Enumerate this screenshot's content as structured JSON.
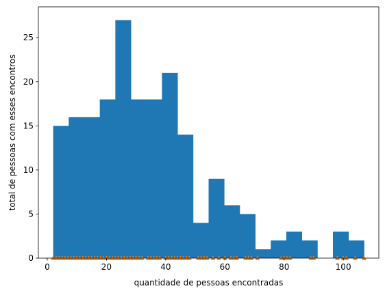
{
  "chart_data": {
    "type": "bar",
    "xlabel": "quantidade de pessoas encontradas",
    "ylabel": "total de pessoas com esses encontros",
    "xlim": [
      -3,
      112
    ],
    "ylim": [
      0,
      28.5
    ],
    "xticks": [
      0,
      20,
      40,
      60,
      80,
      100
    ],
    "yticks": [
      0,
      5,
      10,
      15,
      20,
      25
    ],
    "grid": false,
    "bin_width": 5.25,
    "series": [
      {
        "kind": "histogram",
        "color": "#1f77b4",
        "bin_start": 2,
        "counts": [
          15,
          16,
          16,
          18,
          27,
          18,
          18,
          21,
          14,
          4,
          9,
          6,
          5,
          1,
          2,
          3,
          2,
          0,
          3,
          2
        ]
      },
      {
        "kind": "markers",
        "marker": "triangle",
        "color": "#ff7f0e",
        "y": 0,
        "x": [
          2,
          3,
          4,
          5,
          6,
          7,
          8,
          9,
          10,
          11,
          12,
          13,
          14,
          15,
          16,
          17,
          18,
          19,
          20,
          21,
          22,
          23,
          24,
          25,
          26,
          27,
          28,
          29,
          30,
          31,
          32,
          34,
          35,
          36,
          37,
          38,
          40,
          41,
          42,
          43,
          44,
          45,
          46,
          47,
          48,
          51,
          52,
          53,
          54,
          56,
          58,
          60,
          62,
          63,
          64,
          67,
          68,
          69,
          71,
          79,
          80,
          81,
          82,
          89,
          90,
          98,
          100,
          101,
          104,
          107
        ]
      }
    ]
  }
}
